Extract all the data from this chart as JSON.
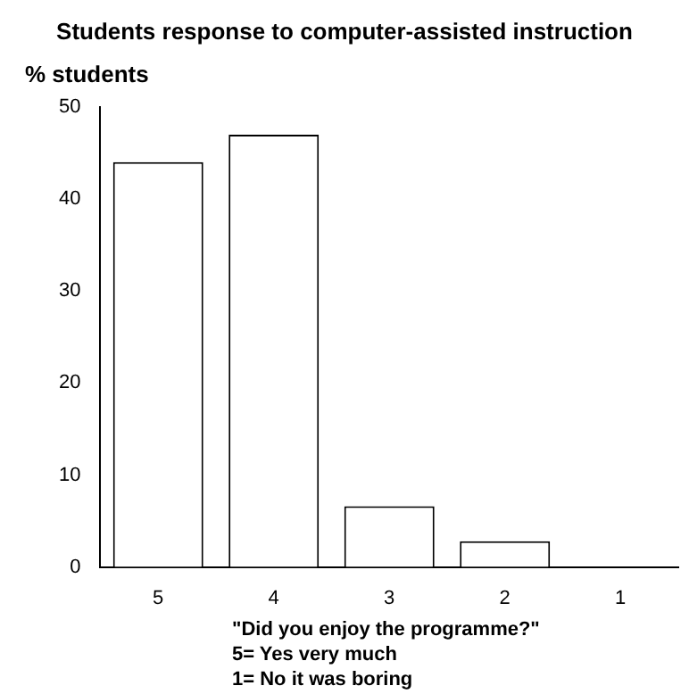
{
  "chart_data": {
    "type": "bar",
    "title": "Students response to computer-assisted instruction",
    "ylabel": "% students",
    "xlabel": "\"Did you enjoy the programme?\"",
    "annotations": [
      "5= Yes very much",
      "1= No it was boring"
    ],
    "categories": [
      "5",
      "4",
      "3",
      "2",
      "1"
    ],
    "values": [
      44,
      47,
      6.6,
      2.8,
      0
    ],
    "color": "#ffffff",
    "ylim": [
      0,
      50
    ],
    "yticks": [
      0,
      10,
      20,
      30,
      40,
      50
    ],
    "grid": false,
    "legend": false
  }
}
